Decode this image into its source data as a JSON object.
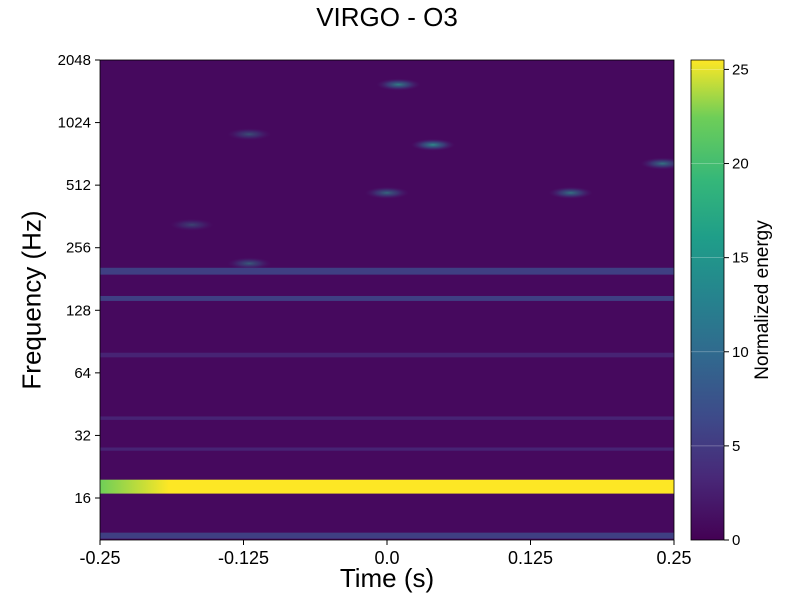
{
  "chart_data": {
    "type": "heatmap",
    "title": "VIRGO - O3",
    "xlabel": "Time (s)",
    "ylabel": "Frequency (Hz)",
    "xlim": [
      -0.25,
      0.25
    ],
    "ylim": [
      10,
      2048
    ],
    "y_scale": "log2",
    "x_ticks": [
      "-0.25",
      "-0.125",
      "0.0",
      "0.125",
      "0.25"
    ],
    "x_tick_values": [
      -0.25,
      -0.125,
      0.0,
      0.125,
      0.25
    ],
    "y_ticks": [
      "16",
      "32",
      "64",
      "128",
      "256",
      "512",
      "1024",
      "2048"
    ],
    "y_tick_values": [
      16,
      32,
      64,
      128,
      256,
      512,
      1024,
      2048
    ],
    "colormap": "viridis",
    "colorbar": {
      "label": "Normalized energy",
      "range": [
        0,
        25.5
      ],
      "ticks": [
        "0",
        "5",
        "10",
        "15",
        "20",
        "25"
      ],
      "tick_values": [
        0,
        5,
        10,
        15,
        20,
        25
      ]
    },
    "features": [
      {
        "kind": "band",
        "freq_low": 16.8,
        "freq_high": 19.6,
        "energy": 25.5
      },
      {
        "kind": "band",
        "freq_low": 10.2,
        "freq_high": 10.9,
        "energy": 5
      },
      {
        "kind": "band",
        "freq_low": 27,
        "freq_high": 28,
        "energy": 4
      },
      {
        "kind": "band",
        "freq_low": 38,
        "freq_high": 39.5,
        "energy": 4
      },
      {
        "kind": "band",
        "freq_low": 76,
        "freq_high": 80,
        "energy": 4.5
      },
      {
        "kind": "band",
        "freq_low": 142,
        "freq_high": 150,
        "energy": 5
      },
      {
        "kind": "band",
        "freq_low": 190,
        "freq_high": 205,
        "energy": 5
      },
      {
        "kind": "blob",
        "t": -0.12,
        "freq": 215,
        "energy": 7
      },
      {
        "kind": "blob",
        "t": -0.17,
        "freq": 330,
        "energy": 5
      },
      {
        "kind": "blob",
        "t": 0.0,
        "freq": 470,
        "energy": 8
      },
      {
        "kind": "blob",
        "t": 0.16,
        "freq": 470,
        "energy": 9
      },
      {
        "kind": "blob",
        "t": 0.04,
        "freq": 800,
        "energy": 11
      },
      {
        "kind": "blob",
        "t": 0.24,
        "freq": 650,
        "energy": 9
      },
      {
        "kind": "blob",
        "t": 0.01,
        "freq": 1560,
        "energy": 10
      },
      {
        "kind": "blob",
        "t": -0.12,
        "freq": 900,
        "energy": 6
      }
    ],
    "grid": false,
    "legend": "none"
  }
}
